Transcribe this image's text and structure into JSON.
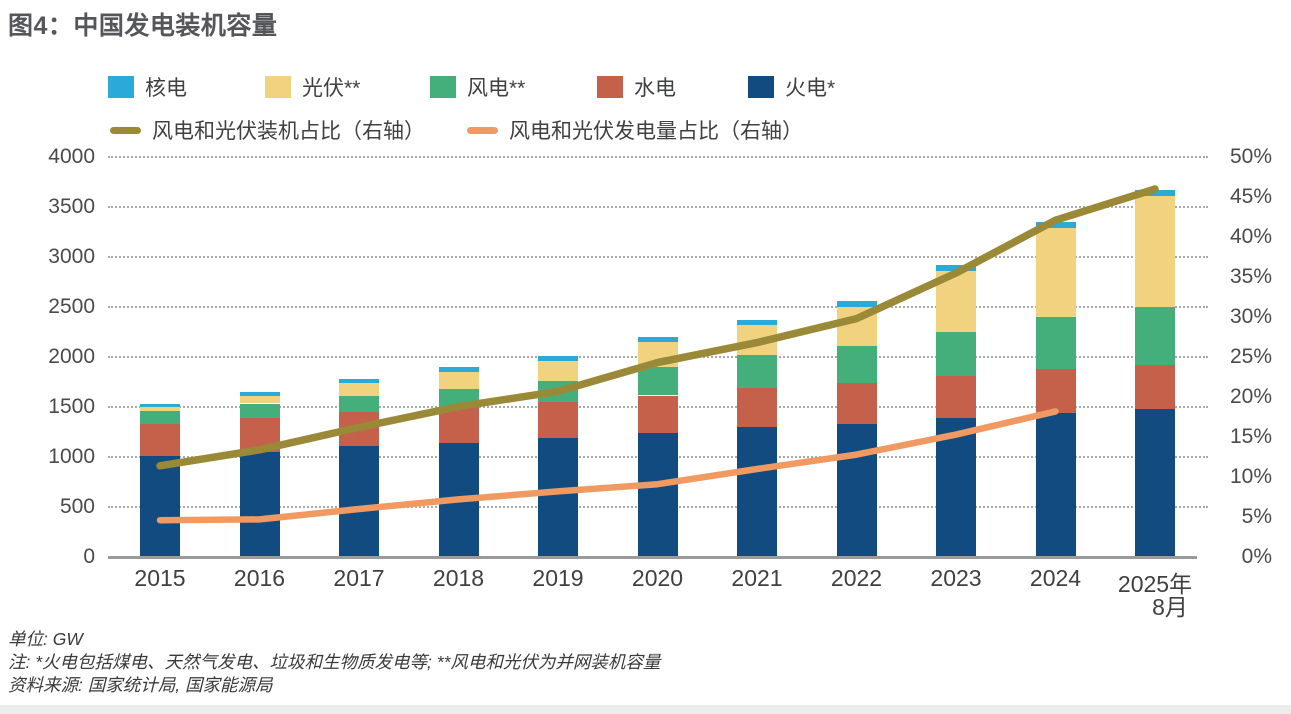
{
  "title": "图4：中国发电装机容量",
  "footer": {
    "unit": "单位: GW",
    "note": "注: *火电包括煤电、天然气发电、垃圾和生物质发电等; **风电和光伏为并网装机容量",
    "source": "资料来源: 国家统计局, 国家能源局"
  },
  "chart_data": {
    "type": "bar",
    "subtype": "stacked-bars-with-line-overlay",
    "title": "图4：中国发电装机容量",
    "unit": "GW",
    "grid": "dotted-horizontal",
    "legend_position": "top",
    "categories": [
      "2015",
      "2016",
      "2017",
      "2018",
      "2019",
      "2020",
      "2021",
      "2022",
      "2023",
      "2024",
      "2025年\n8月"
    ],
    "series": [
      {
        "id": "thermal",
        "label": "火电*",
        "color": "#114b80",
        "values": [
          1006,
          1054,
          1106,
          1144,
          1190,
          1245,
          1297,
          1332,
          1390,
          1444,
          1480
        ]
      },
      {
        "id": "hydro",
        "label": "水电",
        "color": "#c5604b",
        "values": [
          320,
          332,
          341,
          352,
          358,
          370,
          391,
          413,
          422,
          436,
          440
        ]
      },
      {
        "id": "wind",
        "label": "风电**",
        "color": "#45af7c",
        "values": [
          131,
          149,
          164,
          184,
          210,
          281,
          328,
          365,
          441,
          521,
          580
        ]
      },
      {
        "id": "solar",
        "label": "光伏**",
        "color": "#f1d27f",
        "values": [
          43,
          77,
          130,
          174,
          204,
          253,
          306,
          393,
          609,
          887,
          1110
        ]
      },
      {
        "id": "nuclear",
        "label": "核电",
        "color": "#29aad8",
        "values": [
          27,
          34,
          36,
          45,
          49,
          50,
          53,
          55,
          57,
          60,
          65
        ]
      }
    ],
    "lines": [
      {
        "id": "wind-solar-capacity-share",
        "label": "风电和光伏装机占比（右轴）",
        "color": "#9a8a38",
        "axis": "right",
        "values": [
          11.4,
          13.4,
          16.2,
          18.8,
          20.7,
          24.3,
          26.8,
          29.8,
          35.5,
          42.1,
          46.0
        ]
      },
      {
        "id": "wind-solar-generation-share",
        "label": "风电和光伏发电量占比（右轴）",
        "color": "#f09a62",
        "axis": "right",
        "values": [
          4.6,
          4.7,
          6.0,
          7.2,
          8.2,
          9.1,
          11.0,
          12.8,
          15.3,
          18.2
        ]
      }
    ],
    "left_axis": {
      "min": 0,
      "max": 4000,
      "step": 500,
      "ticks": [
        "0",
        "500",
        "1000",
        "1500",
        "2000",
        "2500",
        "3000",
        "3500",
        "4000"
      ]
    },
    "right_axis": {
      "min": 0,
      "max": 50,
      "step": 5,
      "ticks": [
        "0%",
        "5%",
        "10%",
        "15%",
        "20%",
        "25%",
        "30%",
        "35%",
        "40%",
        "45%",
        "50%"
      ]
    }
  }
}
